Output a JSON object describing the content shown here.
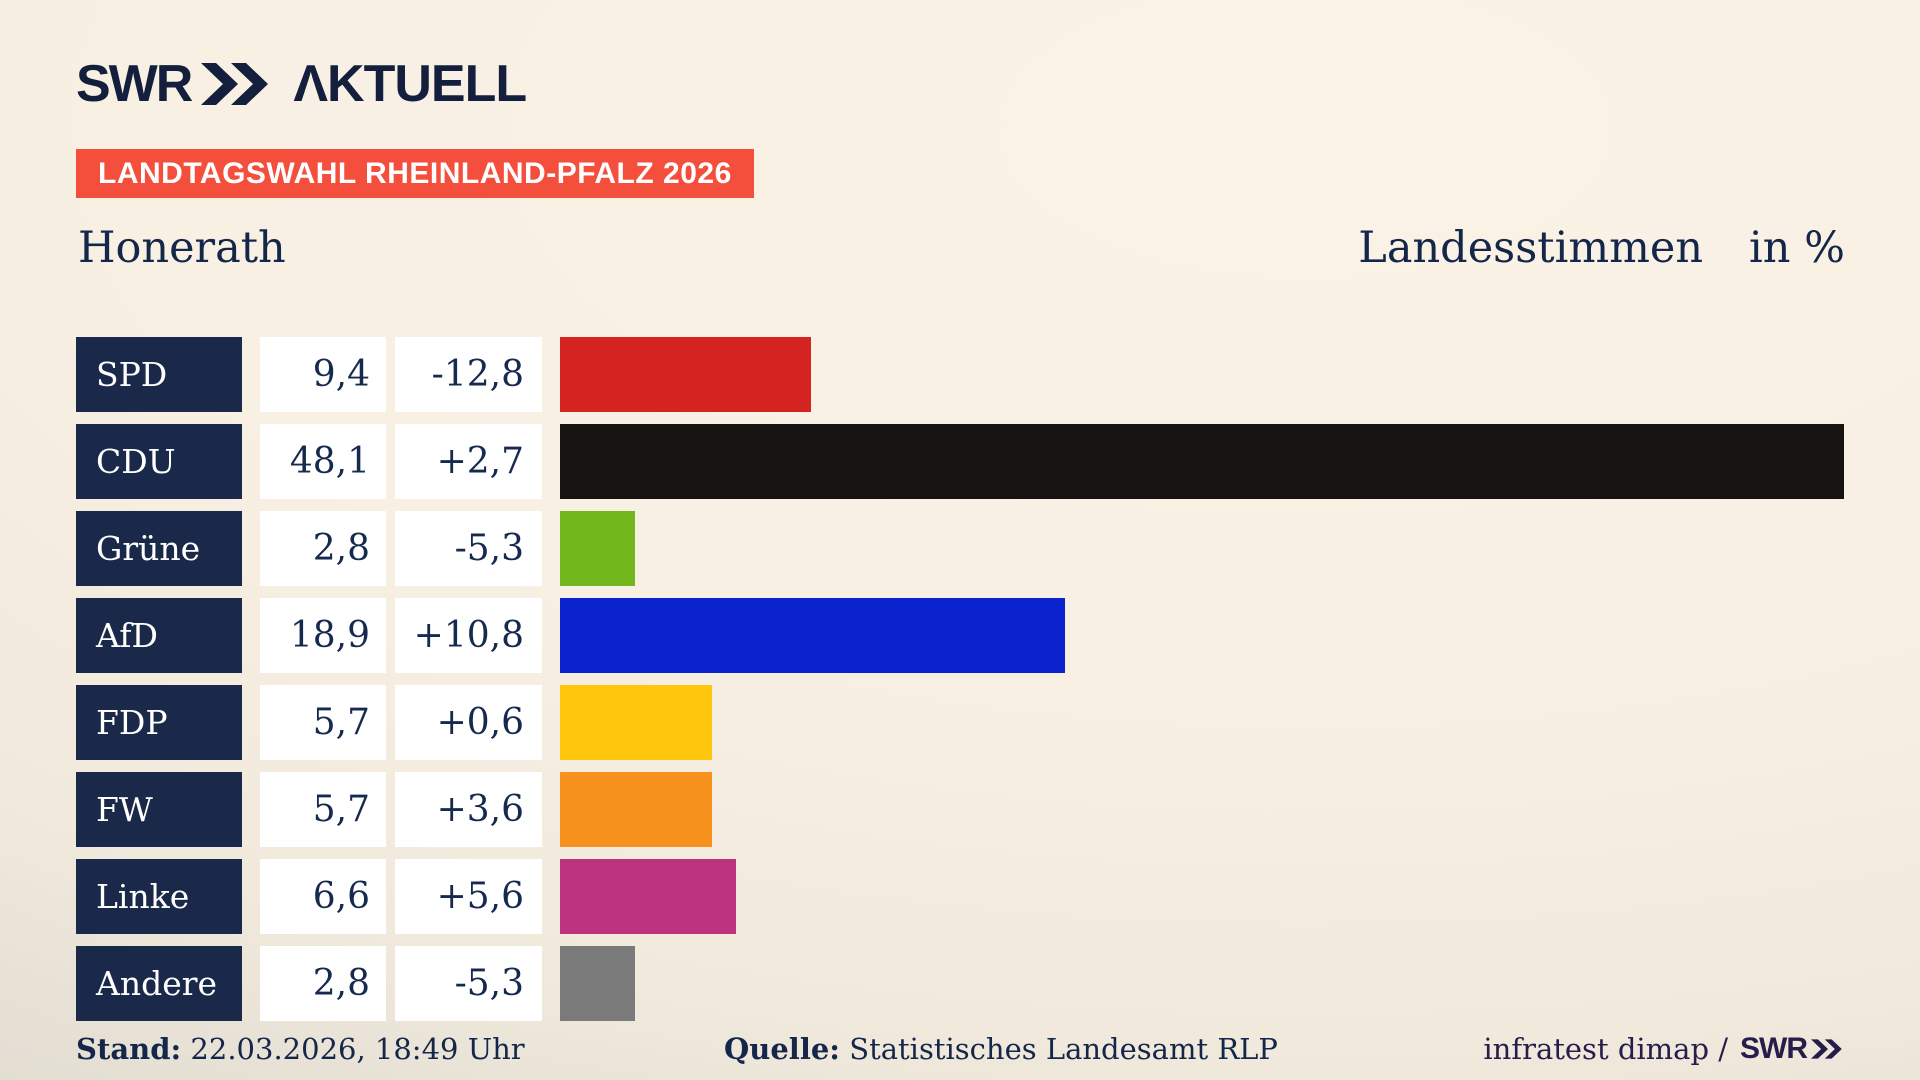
{
  "brand": {
    "swr": "SWR",
    "aktuell": "ΛKTUELL"
  },
  "banner": {
    "text": "LANDTAGSWAHL RHEINLAND-PFALZ 2026",
    "background": "#f34f3c"
  },
  "title": {
    "municipality": "Honerath",
    "measure": "Landesstimmen",
    "unit": "in %"
  },
  "chart_data": {
    "type": "bar",
    "orientation": "horizontal",
    "title": "Landesstimmen in %",
    "unit": "percent",
    "grid": false,
    "legend": false,
    "xlim": [
      0,
      48.1
    ],
    "categories": [
      "SPD",
      "CDU",
      "Grüne",
      "AfD",
      "FDP",
      "FW",
      "Linke",
      "Andere"
    ],
    "series": [
      {
        "name": "Ergebnis in %",
        "values": [
          9.4,
          48.1,
          2.8,
          18.9,
          5.7,
          5.7,
          6.6,
          2.8
        ]
      },
      {
        "name": "Veränderung in Prozentpunkten",
        "values": [
          -12.8,
          2.7,
          -5.3,
          10.8,
          0.6,
          3.6,
          5.6,
          -5.3
        ]
      }
    ],
    "value_labels": [
      "9,4",
      "48,1",
      "2,8",
      "18,9",
      "5,7",
      "5,7",
      "6,6",
      "2,8"
    ],
    "change_labels": [
      "-12,8",
      "+2,7",
      "-5,3",
      "+10,8",
      "+0,6",
      "+3,6",
      "+5,6",
      "-5,3"
    ],
    "bar_colors": [
      "#d52322",
      "#161310",
      "#72b71c",
      "#0b23cf",
      "#ffc60d",
      "#f8921e",
      "#bd3380",
      "#7a7a7a"
    ],
    "label_box_color": "#1a2949",
    "value_box_color": "#ffffff",
    "text_color": "#16294e"
  },
  "footer": {
    "stand_label": "Stand:",
    "stand_value": "22.03.2026, 18:49 Uhr",
    "quelle_label": "Quelle:",
    "quelle_value": "Statistisches Landesamt RLP",
    "credit": "infratest dimap /",
    "credit_logo": "SWR"
  }
}
